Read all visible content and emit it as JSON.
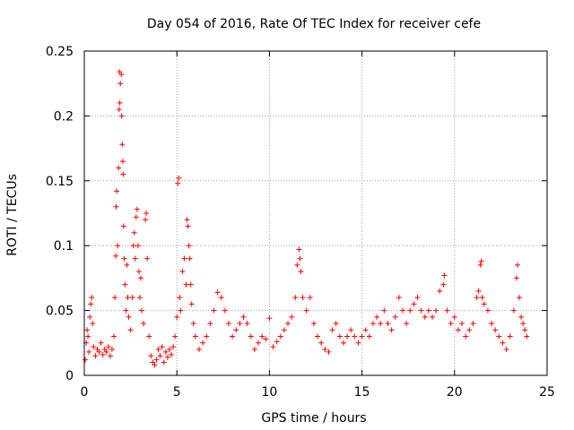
{
  "chart_data": {
    "type": "scatter",
    "title": "Day 054 of 2016, Rate Of TEC Index for receiver cefe",
    "xlabel": "GPS time / hours",
    "ylabel": "ROTI / TECUs",
    "xlim": [
      0,
      25
    ],
    "ylim": [
      0,
      0.25
    ],
    "xticks": [
      0,
      5,
      10,
      15,
      20,
      25
    ],
    "yticks": [
      0,
      0.05,
      0.1,
      0.15,
      0.2,
      0.25
    ],
    "xtick_labels": [
      "0",
      "5",
      "10",
      "15",
      "20",
      "25"
    ],
    "ytick_labels": [
      "0",
      "0.05",
      "0.1",
      "0.15",
      "0.2",
      "0.25"
    ],
    "grid": true,
    "marker": "+",
    "color": "#ff0000",
    "series": [
      {
        "name": "ROTI",
        "points": [
          [
            0.05,
            0.012
          ],
          [
            0.1,
            0.025
          ],
          [
            0.15,
            0.035
          ],
          [
            0.2,
            0.03
          ],
          [
            0.25,
            0.018
          ],
          [
            0.3,
            0.045
          ],
          [
            0.35,
            0.055
          ],
          [
            0.4,
            0.06
          ],
          [
            0.45,
            0.04
          ],
          [
            0.5,
            0.022
          ],
          [
            0.6,
            0.015
          ],
          [
            0.7,
            0.02
          ],
          [
            0.8,
            0.018
          ],
          [
            0.9,
            0.025
          ],
          [
            1.0,
            0.016
          ],
          [
            1.1,
            0.02
          ],
          [
            1.2,
            0.018
          ],
          [
            1.3,
            0.022
          ],
          [
            1.4,
            0.015
          ],
          [
            1.5,
            0.02
          ],
          [
            1.6,
            0.03
          ],
          [
            1.65,
            0.06
          ],
          [
            1.7,
            0.092
          ],
          [
            1.72,
            0.13
          ],
          [
            1.75,
            0.142
          ],
          [
            1.8,
            0.1
          ],
          [
            1.85,
            0.16
          ],
          [
            1.88,
            0.205
          ],
          [
            1.9,
            0.234
          ],
          [
            1.92,
            0.21
          ],
          [
            1.95,
            0.225
          ],
          [
            2.0,
            0.232
          ],
          [
            2.02,
            0.2
          ],
          [
            2.05,
            0.178
          ],
          [
            2.08,
            0.165
          ],
          [
            2.1,
            0.155
          ],
          [
            2.12,
            0.115
          ],
          [
            2.15,
            0.09
          ],
          [
            2.2,
            0.07
          ],
          [
            2.25,
            0.05
          ],
          [
            2.3,
            0.085
          ],
          [
            2.35,
            0.06
          ],
          [
            2.4,
            0.045
          ],
          [
            2.5,
            0.035
          ],
          [
            2.6,
            0.06
          ],
          [
            2.65,
            0.1
          ],
          [
            2.7,
            0.11
          ],
          [
            2.75,
            0.09
          ],
          [
            2.8,
            0.122
          ],
          [
            2.85,
            0.128
          ],
          [
            2.9,
            0.1
          ],
          [
            2.95,
            0.08
          ],
          [
            3.0,
            0.06
          ],
          [
            3.05,
            0.075
          ],
          [
            3.1,
            0.05
          ],
          [
            3.2,
            0.04
          ],
          [
            3.3,
            0.12
          ],
          [
            3.35,
            0.125
          ],
          [
            3.4,
            0.09
          ],
          [
            3.5,
            0.03
          ],
          [
            3.6,
            0.015
          ],
          [
            3.7,
            0.01
          ],
          [
            3.8,
            0.008
          ],
          [
            3.9,
            0.012
          ],
          [
            4.0,
            0.02
          ],
          [
            4.1,
            0.015
          ],
          [
            4.2,
            0.022
          ],
          [
            4.3,
            0.01
          ],
          [
            4.4,
            0.018
          ],
          [
            4.5,
            0.014
          ],
          [
            4.6,
            0.02
          ],
          [
            4.7,
            0.016
          ],
          [
            4.8,
            0.022
          ],
          [
            4.9,
            0.03
          ],
          [
            5.0,
            0.045
          ],
          [
            5.05,
            0.148
          ],
          [
            5.1,
            0.152
          ],
          [
            5.15,
            0.06
          ],
          [
            5.2,
            0.05
          ],
          [
            5.3,
            0.08
          ],
          [
            5.4,
            0.09
          ],
          [
            5.5,
            0.07
          ],
          [
            5.55,
            0.12
          ],
          [
            5.6,
            0.115
          ],
          [
            5.65,
            0.1
          ],
          [
            5.7,
            0.09
          ],
          [
            5.75,
            0.07
          ],
          [
            5.8,
            0.055
          ],
          [
            5.9,
            0.04
          ],
          [
            6.0,
            0.03
          ],
          [
            6.2,
            0.02
          ],
          [
            6.4,
            0.025
          ],
          [
            6.6,
            0.03
          ],
          [
            6.8,
            0.04
          ],
          [
            7.0,
            0.05
          ],
          [
            7.2,
            0.064
          ],
          [
            7.4,
            0.06
          ],
          [
            7.6,
            0.05
          ],
          [
            7.8,
            0.04
          ],
          [
            8.0,
            0.03
          ],
          [
            8.2,
            0.035
          ],
          [
            8.4,
            0.04
          ],
          [
            8.6,
            0.045
          ],
          [
            8.8,
            0.04
          ],
          [
            9.0,
            0.03
          ],
          [
            9.2,
            0.02
          ],
          [
            9.4,
            0.025
          ],
          [
            9.6,
            0.03
          ],
          [
            9.8,
            0.028
          ],
          [
            10.0,
            0.044
          ],
          [
            10.2,
            0.022
          ],
          [
            10.4,
            0.026
          ],
          [
            10.6,
            0.03
          ],
          [
            10.8,
            0.035
          ],
          [
            11.0,
            0.04
          ],
          [
            11.2,
            0.045
          ],
          [
            11.4,
            0.06
          ],
          [
            11.5,
            0.085
          ],
          [
            11.6,
            0.097
          ],
          [
            11.65,
            0.09
          ],
          [
            11.7,
            0.08
          ],
          [
            11.8,
            0.06
          ],
          [
            12.0,
            0.05
          ],
          [
            12.2,
            0.06
          ],
          [
            12.4,
            0.04
          ],
          [
            12.6,
            0.03
          ],
          [
            12.8,
            0.025
          ],
          [
            13.0,
            0.02
          ],
          [
            13.2,
            0.018
          ],
          [
            13.4,
            0.035
          ],
          [
            13.6,
            0.04
          ],
          [
            13.8,
            0.03
          ],
          [
            14.0,
            0.025
          ],
          [
            14.2,
            0.03
          ],
          [
            14.4,
            0.035
          ],
          [
            14.6,
            0.03
          ],
          [
            14.8,
            0.025
          ],
          [
            15.0,
            0.03
          ],
          [
            15.2,
            0.035
          ],
          [
            15.4,
            0.03
          ],
          [
            15.6,
            0.04
          ],
          [
            15.8,
            0.045
          ],
          [
            16.0,
            0.04
          ],
          [
            16.2,
            0.05
          ],
          [
            16.4,
            0.04
          ],
          [
            16.6,
            0.035
          ],
          [
            16.8,
            0.045
          ],
          [
            17.0,
            0.06
          ],
          [
            17.2,
            0.05
          ],
          [
            17.4,
            0.04
          ],
          [
            17.6,
            0.05
          ],
          [
            17.8,
            0.055
          ],
          [
            18.0,
            0.06
          ],
          [
            18.2,
            0.05
          ],
          [
            18.4,
            0.045
          ],
          [
            18.6,
            0.05
          ],
          [
            18.8,
            0.045
          ],
          [
            19.0,
            0.05
          ],
          [
            19.2,
            0.065
          ],
          [
            19.4,
            0.07
          ],
          [
            19.45,
            0.077
          ],
          [
            19.6,
            0.05
          ],
          [
            19.8,
            0.04
          ],
          [
            20.0,
            0.045
          ],
          [
            20.2,
            0.035
          ],
          [
            20.4,
            0.04
          ],
          [
            20.6,
            0.03
          ],
          [
            20.8,
            0.035
          ],
          [
            21.0,
            0.04
          ],
          [
            21.2,
            0.06
          ],
          [
            21.3,
            0.065
          ],
          [
            21.4,
            0.085
          ],
          [
            21.45,
            0.088
          ],
          [
            21.5,
            0.06
          ],
          [
            21.6,
            0.055
          ],
          [
            21.8,
            0.05
          ],
          [
            22.0,
            0.04
          ],
          [
            22.2,
            0.035
          ],
          [
            22.4,
            0.03
          ],
          [
            22.6,
            0.025
          ],
          [
            22.8,
            0.02
          ],
          [
            23.0,
            0.03
          ],
          [
            23.2,
            0.05
          ],
          [
            23.35,
            0.075
          ],
          [
            23.4,
            0.085
          ],
          [
            23.5,
            0.06
          ],
          [
            23.6,
            0.045
          ],
          [
            23.7,
            0.04
          ],
          [
            23.8,
            0.035
          ],
          [
            23.9,
            0.03
          ]
        ]
      }
    ]
  }
}
